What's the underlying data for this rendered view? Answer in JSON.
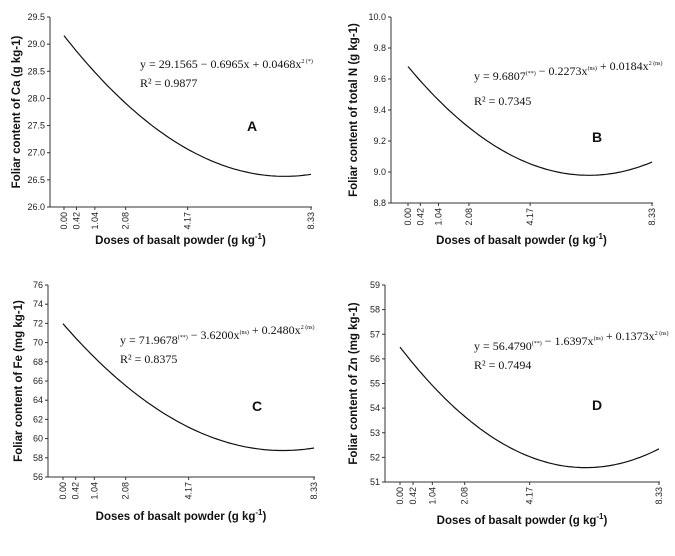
{
  "chart_data": [
    {
      "type": "line",
      "panel": "A",
      "ylabel": "Foliar content of Ca (g kg-1)",
      "xlabel": "Doses of basalt powder (g kg",
      "xlabel_sup": "-1",
      "xlabel_end": ")",
      "x_ticks": [
        "0.00",
        "0.42",
        "1.04",
        "2.08",
        "4.17",
        "8.33"
      ],
      "xlim": [
        0,
        8.33
      ],
      "ylim": [
        26.0,
        29.5
      ],
      "y_ticks": [
        "26.0",
        "26.5",
        "27.0",
        "27.5",
        "28.0",
        "28.5",
        "29.0",
        "29.5"
      ],
      "coefficients": [
        29.1565,
        -0.6965,
        0.0468
      ],
      "equation": [
        {
          "t": "y = 29.1565",
          "s": ""
        },
        {
          "t": " − 0.6965x",
          "s": ""
        },
        {
          "t": " + 0.0468x",
          "s": "2 (*)"
        }
      ],
      "r2": "R² = 0.9877"
    },
    {
      "type": "line",
      "panel": "B",
      "ylabel": "Foliar content of total N (g kg-1)",
      "xlabel": "Doses of basalt powder (g kg",
      "xlabel_sup": "-1",
      "xlabel_end": ")",
      "x_ticks": [
        "0.00",
        "0.42",
        "1.04",
        "2.08",
        "4.17",
        "8.33"
      ],
      "xlim": [
        0,
        8.33
      ],
      "ylim": [
        8.8,
        10.0
      ],
      "y_ticks": [
        "8.8",
        "9.0",
        "9.2",
        "9.4",
        "9.6",
        "9.8",
        "10.0"
      ],
      "coefficients": [
        9.6807,
        -0.2273,
        0.0184
      ],
      "equation": [
        {
          "t": "y = 9.6807",
          "s": "(**)"
        },
        {
          "t": " − 0.2273x",
          "s": "(ns)"
        },
        {
          "t": " + 0.0184x",
          "s": "2 (ns)"
        }
      ],
      "r2": "R² = 0.7345"
    },
    {
      "type": "line",
      "panel": "C",
      "ylabel": "Foliar content of Fe (mg kg-1)",
      "xlabel": "Doses of basalt  powder (g kg",
      "xlabel_sup": "-1",
      "xlabel_end": ")",
      "x_ticks": [
        "0.00",
        "0.42",
        "1.04",
        "2.08",
        "4.17",
        "8.33"
      ],
      "xlim": [
        0,
        8.33
      ],
      "ylim": [
        56,
        76
      ],
      "y_ticks": [
        "56",
        "58",
        "60",
        "62",
        "64",
        "66",
        "68",
        "70",
        "72",
        "74",
        "76"
      ],
      "coefficients": [
        71.9678,
        -3.62,
        0.248
      ],
      "equation": [
        {
          "t": "y = 71.9678",
          "s": "(**)"
        },
        {
          "t": " − 3.6200x",
          "s": "(ns)"
        },
        {
          "t": " + 0.2480x",
          "s": "2 (ns)"
        }
      ],
      "r2": "R² = 0.8375"
    },
    {
      "type": "line",
      "panel": "D",
      "ylabel": "Foliar content of Zn (mg kg-1)",
      "xlabel": "Doses of basalt powder (g kg",
      "xlabel_sup": "-1",
      "xlabel_end": ")",
      "x_ticks": [
        "0.00",
        "0.42",
        "1.04",
        "2.08",
        "4.17",
        "8.33"
      ],
      "xlim": [
        0,
        8.33
      ],
      "ylim": [
        51,
        59
      ],
      "y_ticks": [
        "51",
        "52",
        "53",
        "54",
        "55",
        "56",
        "57",
        "58",
        "59"
      ],
      "coefficients": [
        56.479,
        -1.6397,
        0.1373
      ],
      "equation": [
        {
          "t": "y = 56.4790",
          "s": "(**)"
        },
        {
          "t": " − 1.6397x",
          "s": "(ns)"
        },
        {
          "t": " + 0.1373x",
          "s": "2 (ns)"
        }
      ],
      "r2": "R² = 0.7494"
    }
  ]
}
